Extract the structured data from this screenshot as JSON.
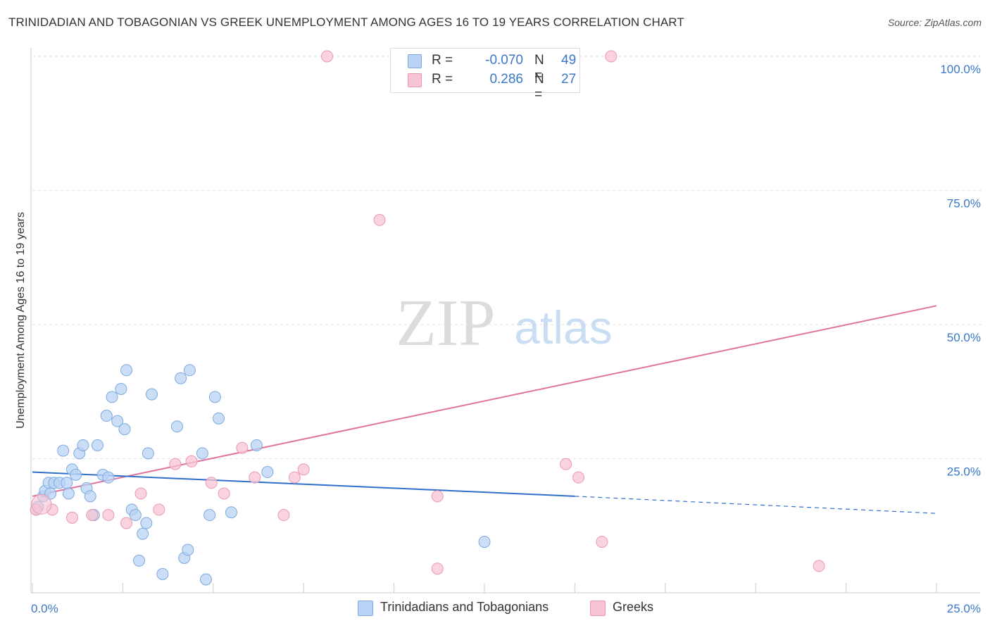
{
  "title": "TRINIDADIAN AND TOBAGONIAN VS GREEK UNEMPLOYMENT AMONG AGES 16 TO 19 YEARS CORRELATION CHART",
  "source": "Source: ZipAtlas.com",
  "watermark": {
    "zip": "ZIP",
    "atlas": "atlas"
  },
  "colors": {
    "blue_fill": "#b8d3f5",
    "blue_stroke": "#7ea9dd",
    "blue_line": "#2f6fcc",
    "pink_fill": "#f8c4d4",
    "pink_stroke": "#e89ab3",
    "pink_line": "#e0739b",
    "tick_text": "#3a78c9",
    "grid": "#e3e3e3"
  },
  "legend_top": [
    {
      "r_label": "R =",
      "r_value": "-0.070",
      "n_label": "N =",
      "n_value": "49"
    },
    {
      "r_label": "R =",
      "r_value": "0.286",
      "n_label": "N =",
      "n_value": "27"
    }
  ],
  "chart_data": {
    "type": "scatter",
    "title": "TRINIDADIAN AND TOBAGONIAN VS GREEK UNEMPLOYMENT AMONG AGES 16 TO 19 YEARS CORRELATION CHART",
    "xlabel": "",
    "ylabel": "Unemployment Among Ages 16 to 19 years",
    "xlim": [
      0,
      25
    ],
    "ylim": [
      0,
      100
    ],
    "x_tick_labels": [
      {
        "value": 0,
        "label": "0.0%"
      },
      {
        "value": 25,
        "label": "25.0%"
      }
    ],
    "y_tick_labels": [
      {
        "value": 25,
        "label": "25.0%"
      },
      {
        "value": 50,
        "label": "50.0%"
      },
      {
        "value": 75,
        "label": "75.0%"
      },
      {
        "value": 100,
        "label": "100.0%"
      }
    ],
    "grid": true,
    "legend_position": "bottom",
    "series": [
      {
        "name": "Trinidadians and Tobagonians",
        "color": "#b8d3f5",
        "trend": {
          "x": [
            0,
            15
          ],
          "y": [
            22.5,
            18.0
          ],
          "dashed_to": [
            25,
            14.8
          ]
        },
        "points": [
          [
            0.15,
            16.0
          ],
          [
            0.3,
            18.0
          ],
          [
            0.35,
            19.0
          ],
          [
            0.45,
            20.5
          ],
          [
            0.5,
            18.5
          ],
          [
            0.6,
            20.5
          ],
          [
            0.75,
            20.5
          ],
          [
            0.85,
            26.5
          ],
          [
            0.95,
            20.5
          ],
          [
            1.0,
            18.5
          ],
          [
            1.1,
            23.0
          ],
          [
            1.2,
            22.0
          ],
          [
            1.3,
            26.0
          ],
          [
            1.4,
            27.5
          ],
          [
            1.5,
            19.5
          ],
          [
            1.6,
            18.0
          ],
          [
            1.7,
            14.5
          ],
          [
            1.8,
            27.5
          ],
          [
            1.95,
            22.0
          ],
          [
            2.05,
            33.0
          ],
          [
            2.1,
            21.5
          ],
          [
            2.2,
            36.5
          ],
          [
            2.35,
            32.0
          ],
          [
            2.45,
            38.0
          ],
          [
            2.55,
            30.5
          ],
          [
            2.6,
            41.5
          ],
          [
            2.75,
            15.5
          ],
          [
            2.85,
            14.5
          ],
          [
            2.95,
            6.0
          ],
          [
            3.05,
            11.0
          ],
          [
            3.15,
            13.0
          ],
          [
            3.2,
            26.0
          ],
          [
            3.3,
            37.0
          ],
          [
            3.6,
            3.5
          ],
          [
            4.0,
            31.0
          ],
          [
            4.1,
            40.0
          ],
          [
            4.2,
            6.5
          ],
          [
            4.3,
            8.0
          ],
          [
            4.35,
            41.5
          ],
          [
            4.7,
            26.0
          ],
          [
            4.8,
            2.5
          ],
          [
            4.9,
            14.5
          ],
          [
            5.05,
            36.5
          ],
          [
            5.15,
            32.5
          ],
          [
            5.5,
            15.0
          ],
          [
            6.2,
            27.5
          ],
          [
            6.5,
            22.5
          ],
          [
            12.5,
            9.5
          ],
          [
            0.1,
            15.5
          ]
        ]
      },
      {
        "name": "Greeks",
        "color": "#f8c4d4",
        "trend": {
          "x": [
            0,
            25
          ],
          "y": [
            18.0,
            53.5
          ]
        },
        "points": [
          [
            0.1,
            15.5
          ],
          [
            0.55,
            15.5
          ],
          [
            1.1,
            14.0
          ],
          [
            1.65,
            14.5
          ],
          [
            2.1,
            14.5
          ],
          [
            2.6,
            13.0
          ],
          [
            3.0,
            18.5
          ],
          [
            3.5,
            15.5
          ],
          [
            3.95,
            24.0
          ],
          [
            4.4,
            24.5
          ],
          [
            4.95,
            20.5
          ],
          [
            5.3,
            18.5
          ],
          [
            5.8,
            27.0
          ],
          [
            6.15,
            21.5
          ],
          [
            6.95,
            14.5
          ],
          [
            7.25,
            21.5
          ],
          [
            7.5,
            23.0
          ],
          [
            8.15,
            100.0
          ],
          [
            9.6,
            69.5
          ],
          [
            11.2,
            18.0
          ],
          [
            11.2,
            4.5
          ],
          [
            14.45,
            100.0
          ],
          [
            14.75,
            24.0
          ],
          [
            15.1,
            21.5
          ],
          [
            15.75,
            9.5
          ],
          [
            16.0,
            100.0
          ],
          [
            21.75,
            5.0
          ]
        ]
      }
    ]
  }
}
